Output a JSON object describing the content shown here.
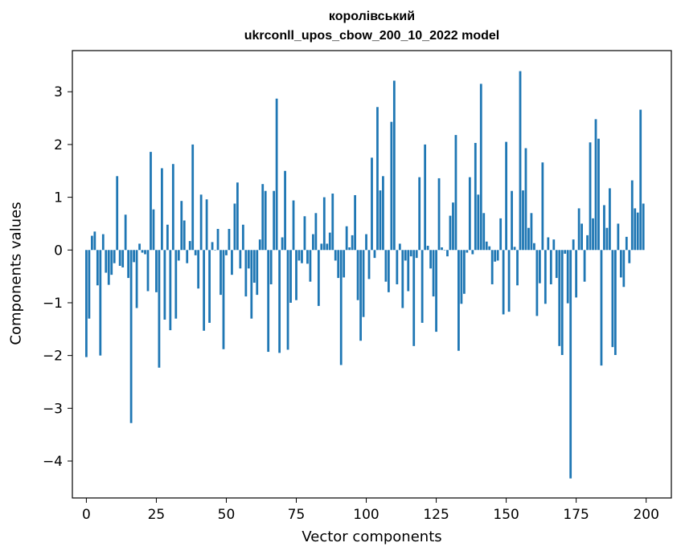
{
  "chart_data": {
    "type": "bar",
    "title": [
      "королівський",
      "ukrconll_upos_cbow_200_10_2022 model"
    ],
    "xlabel": "Vector components",
    "ylabel": "Components values",
    "xlim": [
      -5,
      209
    ],
    "ylim": [
      -4.7,
      3.78
    ],
    "xticks": [
      0,
      25,
      50,
      75,
      100,
      125,
      150,
      175,
      200
    ],
    "yticks": [
      -4,
      -3,
      -2,
      -1,
      0,
      1,
      2,
      3
    ],
    "bar_color": "#1f77b4",
    "x": [
      0,
      1,
      2,
      3,
      4,
      5,
      6,
      7,
      8,
      9,
      10,
      11,
      12,
      13,
      14,
      15,
      16,
      17,
      18,
      19,
      20,
      21,
      22,
      23,
      24,
      25,
      26,
      27,
      28,
      29,
      30,
      31,
      32,
      33,
      34,
      35,
      36,
      37,
      38,
      39,
      40,
      41,
      42,
      43,
      44,
      45,
      46,
      47,
      48,
      49,
      50,
      51,
      52,
      53,
      54,
      55,
      56,
      57,
      58,
      59,
      60,
      61,
      62,
      63,
      64,
      65,
      66,
      67,
      68,
      69,
      70,
      71,
      72,
      73,
      74,
      75,
      76,
      77,
      78,
      79,
      80,
      81,
      82,
      83,
      84,
      85,
      86,
      87,
      88,
      89,
      90,
      91,
      92,
      93,
      94,
      95,
      96,
      97,
      98,
      99,
      100,
      101,
      102,
      103,
      104,
      105,
      106,
      107,
      108,
      109,
      110,
      111,
      112,
      113,
      114,
      115,
      116,
      117,
      118,
      119,
      120,
      121,
      122,
      123,
      124,
      125,
      126,
      127,
      128,
      129,
      130,
      131,
      132,
      133,
      134,
      135,
      136,
      137,
      138,
      139,
      140,
      141,
      142,
      143,
      144,
      145,
      146,
      147,
      148,
      149,
      150,
      151,
      152,
      153,
      154,
      155,
      156,
      157,
      158,
      159,
      160,
      161,
      162,
      163,
      164,
      165,
      166,
      167,
      168,
      169,
      170,
      171,
      172,
      173,
      174,
      175,
      176,
      177,
      178,
      179,
      180,
      181,
      182,
      183,
      184,
      185,
      186,
      187,
      188,
      189,
      190,
      191,
      192,
      193,
      194,
      195,
      196,
      197,
      198,
      199
    ],
    "values": [
      -2.03,
      -1.3,
      0.27,
      0.35,
      -0.67,
      -2.0,
      0.3,
      -0.43,
      -0.66,
      -0.47,
      -0.25,
      1.4,
      -0.3,
      -0.33,
      0.67,
      -0.53,
      -3.28,
      -0.23,
      -1.1,
      0.12,
      -0.05,
      -0.08,
      -0.78,
      1.86,
      0.77,
      -0.8,
      -2.23,
      1.55,
      -1.32,
      0.48,
      -1.52,
      1.63,
      -1.3,
      -0.2,
      0.93,
      0.56,
      -0.25,
      0.17,
      2.0,
      -0.1,
      -0.73,
      1.05,
      -1.53,
      0.96,
      -1.38,
      0.15,
      0.0,
      0.4,
      -0.85,
      -1.88,
      -0.1,
      0.4,
      -0.47,
      0.88,
      1.28,
      -0.35,
      0.48,
      -0.88,
      -0.35,
      -1.3,
      -0.62,
      -0.85,
      0.2,
      1.25,
      1.12,
      -1.93,
      -0.65,
      1.12,
      2.87,
      -1.95,
      0.24,
      1.5,
      -1.89,
      -1.0,
      0.94,
      -0.95,
      -0.2,
      -0.25,
      0.64,
      -0.26,
      -0.6,
      0.3,
      0.7,
      -1.06,
      0.12,
      1.0,
      0.12,
      0.33,
      1.07,
      -0.2,
      -0.53,
      -2.18,
      -0.52,
      0.45,
      0.05,
      0.28,
      1.04,
      -0.95,
      -1.72,
      -1.27,
      0.3,
      -0.55,
      1.75,
      -0.15,
      2.71,
      1.13,
      1.4,
      -0.6,
      -0.8,
      2.43,
      3.21,
      -0.65,
      0.12,
      -1.1,
      -0.2,
      -0.78,
      -0.12,
      -1.82,
      -0.15,
      1.38,
      -1.38,
      2.0,
      0.08,
      -0.35,
      -0.88,
      -1.55,
      1.36,
      0.05,
      0.0,
      -0.12,
      0.65,
      0.9,
      2.18,
      -1.91,
      -1.02,
      -0.83,
      -0.05,
      1.38,
      -0.08,
      2.03,
      1.05,
      3.15,
      0.7,
      0.16,
      0.07,
      -0.65,
      -0.22,
      -0.2,
      0.6,
      -1.22,
      2.05,
      -1.17,
      1.12,
      0.06,
      -0.67,
      3.39,
      1.13,
      1.93,
      0.42,
      0.7,
      0.13,
      -1.25,
      -0.63,
      1.66,
      -1.02,
      0.24,
      -0.65,
      0.2,
      -0.53,
      -1.82,
      -1.99,
      -0.07,
      -1.01,
      -4.33,
      0.2,
      -0.9,
      0.79,
      0.5,
      -0.6,
      0.28,
      2.04,
      0.6,
      2.48,
      2.11,
      -2.19,
      0.85,
      0.42,
      1.17,
      -1.84,
      -1.99,
      0.5,
      -0.52,
      -0.7,
      0.25,
      -0.25,
      1.32,
      0.79,
      0.71,
      2.66,
      0.88
    ]
  }
}
